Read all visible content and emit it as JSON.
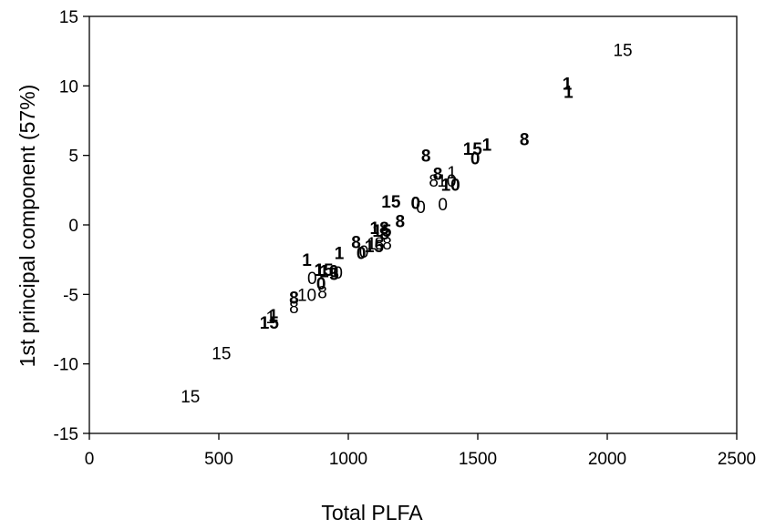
{
  "chart_data": {
    "type": "scatter",
    "title": "",
    "xlabel": "Total PLFA",
    "ylabel": "1st principal component (57%)",
    "xlim": [
      0,
      2500
    ],
    "ylim": [
      -15,
      15
    ],
    "x_ticks": [
      "0",
      "500",
      "1000",
      "1500",
      "2000",
      "2500"
    ],
    "y_ticks": [
      "-15",
      "-10",
      "-5",
      "0",
      "5",
      "10",
      "15"
    ],
    "grid": false,
    "legend": "none",
    "marker_style": "points are drawn as their sampling-time labels; bold and regular labels form two groups",
    "series": [
      {
        "style": "regular",
        "points": [
          {
            "x": 2060,
            "y": 12.6,
            "label": "15"
          },
          {
            "x": 390,
            "y": -12.3,
            "label": "15"
          },
          {
            "x": 510,
            "y": -9.2,
            "label": "15"
          },
          {
            "x": 700,
            "y": -6.6,
            "label": "1"
          },
          {
            "x": 790,
            "y": -5.9,
            "label": "8"
          },
          {
            "x": 840,
            "y": -5.0,
            "label": "10"
          },
          {
            "x": 900,
            "y": -4.8,
            "label": "8"
          },
          {
            "x": 860,
            "y": -3.8,
            "label": "0"
          },
          {
            "x": 890,
            "y": -3.2,
            "label": "1"
          },
          {
            "x": 960,
            "y": -3.4,
            "label": "0"
          },
          {
            "x": 1060,
            "y": -1.9,
            "label": "0"
          },
          {
            "x": 1090,
            "y": -1.3,
            "label": "1"
          },
          {
            "x": 1120,
            "y": -1.3,
            "label": "8"
          },
          {
            "x": 1150,
            "y": -1.3,
            "label": "8"
          },
          {
            "x": 1280,
            "y": 1.3,
            "label": "0"
          },
          {
            "x": 1365,
            "y": 1.5,
            "label": "0"
          },
          {
            "x": 1330,
            "y": 3.2,
            "label": "8"
          },
          {
            "x": 1380,
            "y": 3.2,
            "label": "10"
          },
          {
            "x": 1400,
            "y": 3.8,
            "label": "1"
          }
        ]
      },
      {
        "style": "bold",
        "points": [
          {
            "x": 1845,
            "y": 10.2,
            "label": "1"
          },
          {
            "x": 1850,
            "y": 9.6,
            "label": "1"
          },
          {
            "x": 1680,
            "y": 6.2,
            "label": "8"
          },
          {
            "x": 1300,
            "y": 5.0,
            "label": "8"
          },
          {
            "x": 1480,
            "y": 5.5,
            "label": "15"
          },
          {
            "x": 1535,
            "y": 5.8,
            "label": "1"
          },
          {
            "x": 1490,
            "y": 4.8,
            "label": "0"
          },
          {
            "x": 1345,
            "y": 3.7,
            "label": "8"
          },
          {
            "x": 1395,
            "y": 2.9,
            "label": "10"
          },
          {
            "x": 1165,
            "y": 1.7,
            "label": "15"
          },
          {
            "x": 1260,
            "y": 1.6,
            "label": "0"
          },
          {
            "x": 1200,
            "y": 0.3,
            "label": "8"
          },
          {
            "x": 1120,
            "y": -0.2,
            "label": "18"
          },
          {
            "x": 1140,
            "y": -0.6,
            "label": "8"
          },
          {
            "x": 1030,
            "y": -1.2,
            "label": "8"
          },
          {
            "x": 1050,
            "y": -2.0,
            "label": "0"
          },
          {
            "x": 1100,
            "y": -1.5,
            "label": "15"
          },
          {
            "x": 1130,
            "y": -0.4,
            "label": "15"
          },
          {
            "x": 840,
            "y": -2.5,
            "label": "1"
          },
          {
            "x": 965,
            "y": -2.0,
            "label": "1"
          },
          {
            "x": 905,
            "y": -3.2,
            "label": "15"
          },
          {
            "x": 925,
            "y": -3.3,
            "label": "10"
          },
          {
            "x": 945,
            "y": -3.5,
            "label": "5"
          },
          {
            "x": 895,
            "y": -4.2,
            "label": "0"
          },
          {
            "x": 790,
            "y": -5.2,
            "label": "8"
          },
          {
            "x": 710,
            "y": -6.5,
            "label": "1"
          },
          {
            "x": 695,
            "y": -7.0,
            "label": "15"
          }
        ]
      }
    ]
  }
}
